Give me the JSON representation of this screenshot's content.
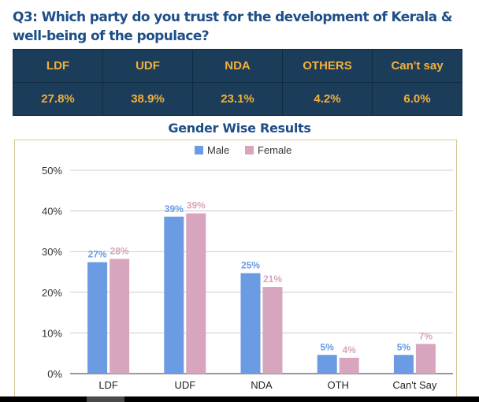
{
  "question": "Q3: Which party do you trust for the development of Kerala & well-being of the populace?",
  "summary": {
    "headers": [
      "LDF",
      "UDF",
      "NDA",
      "OTHERS",
      "Can't say"
    ],
    "values": [
      "27.8%",
      "38.9%",
      "23.1%",
      "4.2%",
      "6.0%"
    ]
  },
  "colors": {
    "male": "#6a9be3",
    "female": "#d7a5bd",
    "table_bg": "#1c3d5a",
    "table_text": "#f2b03a",
    "title_text": "#1e4e87"
  },
  "chart_data": {
    "type": "bar",
    "title": "Gender Wise Results",
    "categories": [
      "LDF",
      "UDF",
      "NDA",
      "OTH",
      "Can't Say"
    ],
    "series": [
      {
        "name": "Male",
        "values": [
          27.4,
          38.6,
          24.7,
          4.6,
          4.6
        ],
        "labels": [
          "27%",
          "39%",
          "25%",
          "5%",
          "5%"
        ]
      },
      {
        "name": "Female",
        "values": [
          28.2,
          39.4,
          21.3,
          3.9,
          7.3
        ],
        "labels": [
          "28%",
          "39%",
          "21%",
          "4%",
          "7%"
        ]
      }
    ],
    "yticks": [
      "0%",
      "10%",
      "20%",
      "30%",
      "40%",
      "50%"
    ],
    "ylim": [
      0,
      50
    ],
    "legend": "top-center",
    "grid": true
  }
}
